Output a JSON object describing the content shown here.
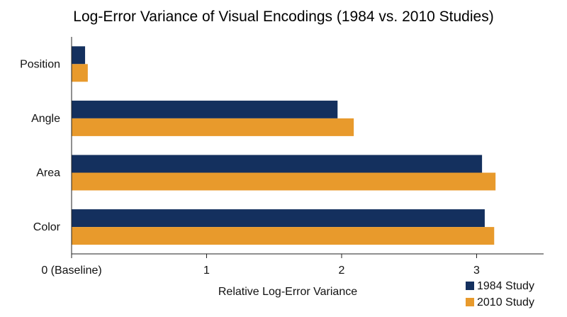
{
  "chart_data": {
    "type": "bar",
    "orientation": "horizontal",
    "title": "Log-Error Variance of Visual Encodings (1984 vs. 2010 Studies)",
    "xlabel": "Relative Log-Error Variance",
    "ylabel": "",
    "categories": [
      "Position",
      "Angle",
      "Area",
      "Color"
    ],
    "series": [
      {
        "name": "1984 Study",
        "color": "#14305e",
        "values": [
          0.1,
          1.97,
          3.04,
          3.06
        ]
      },
      {
        "name": "2010 Study",
        "color": "#e89a2c",
        "values": [
          0.12,
          2.09,
          3.14,
          3.13
        ]
      }
    ],
    "xlim": [
      0,
      3.5
    ],
    "xticks": [
      {
        "value": 0,
        "label": "0 (Baseline)"
      },
      {
        "value": 1,
        "label": "1"
      },
      {
        "value": 2,
        "label": "2"
      },
      {
        "value": 3,
        "label": "3"
      }
    ],
    "grid": false,
    "legend_position": "bottom-right"
  }
}
